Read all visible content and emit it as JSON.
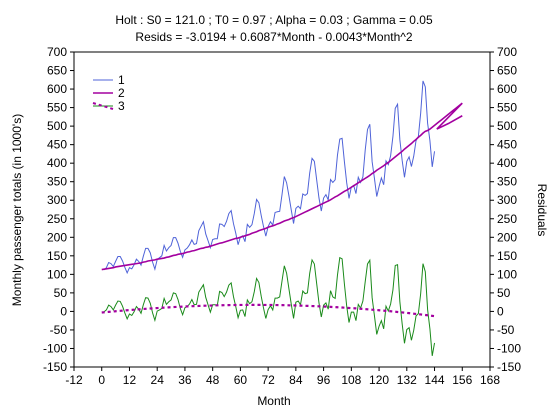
{
  "chart_data": {
    "type": "line",
    "title": "Holt : S0 = 121.0 ; T0 = 0.97 ; Alpha = 0.03 ; Gamma = 0.05",
    "subtitle": "Resids = -3.0194 + 0.6087*Month - 0.0043*Month^2",
    "xlabel": "Month",
    "ylabel": "Monthly passenger totals (in 1000's)",
    "ylabel_right": "Residuals",
    "xlim": [
      -12,
      168
    ],
    "ylim": [
      -150,
      700
    ],
    "ylim_right": [
      -150,
      700
    ],
    "xticks": [
      "-12",
      "0",
      "12",
      "24",
      "36",
      "48",
      "60",
      "72",
      "84",
      "96",
      "108",
      "120",
      "132",
      "144",
      "156",
      "168"
    ],
    "yticks": [
      "-150",
      "-100",
      "-50",
      "0",
      "50",
      "100",
      "150",
      "200",
      "250",
      "300",
      "350",
      "400",
      "450",
      "500",
      "550",
      "600",
      "650",
      "700"
    ],
    "grid": false,
    "legend_position": "top-left",
    "series": [
      {
        "name": "1",
        "color": "#4f63d8",
        "style": "solid",
        "x_start": 1,
        "values": [
          112,
          118,
          132,
          129,
          121,
          135,
          148,
          148,
          136,
          119,
          104,
          118,
          115,
          126,
          141,
          135,
          125,
          149,
          170,
          170,
          158,
          133,
          114,
          140,
          145,
          150,
          178,
          163,
          172,
          178,
          199,
          199,
          184,
          162,
          146,
          166,
          171,
          180,
          193,
          181,
          183,
          218,
          230,
          242,
          209,
          191,
          172,
          194,
          196,
          196,
          236,
          235,
          229,
          243,
          264,
          272,
          237,
          211,
          180,
          201,
          204,
          188,
          235,
          227,
          234,
          264,
          302,
          293,
          259,
          229,
          203,
          229,
          242,
          233,
          267,
          269,
          270,
          315,
          364,
          347,
          312,
          274,
          237,
          278,
          284,
          277,
          317,
          313,
          318,
          374,
          413,
          405,
          355,
          306,
          271,
          306,
          315,
          301,
          356,
          348,
          355,
          422,
          465,
          467,
          404,
          347,
          305,
          336,
          340,
          318,
          362,
          348,
          363,
          435,
          491,
          505,
          404,
          359,
          310,
          337,
          360,
          342,
          406,
          396,
          420,
          472,
          548,
          559,
          463,
          407,
          362,
          405,
          417,
          391,
          419,
          461,
          472,
          535,
          622,
          606,
          508,
          461,
          390,
          432
        ]
      },
      {
        "name": "2",
        "color": "#a3009f",
        "style": "solid",
        "x_start": 0,
        "values": [
          113,
          114,
          115,
          116,
          117,
          118,
          120,
          121,
          122,
          123,
          124,
          125,
          126,
          127,
          128,
          129,
          130,
          131,
          133,
          134,
          136,
          137,
          138,
          139,
          141,
          142,
          143,
          144,
          146,
          147,
          149,
          151,
          152,
          154,
          155,
          156,
          158,
          160,
          161,
          163,
          164,
          166,
          168,
          170,
          171,
          173,
          174,
          176,
          178,
          180,
          182,
          184,
          185,
          187,
          189,
          191,
          193,
          195,
          197,
          198,
          200,
          202,
          204,
          206,
          208,
          211,
          213,
          215,
          218,
          220,
          222,
          224,
          227,
          229,
          231,
          233,
          236,
          238,
          241,
          244,
          246,
          248,
          251,
          253,
          256,
          259,
          262,
          265,
          268,
          271,
          274,
          277,
          280,
          283,
          286,
          289,
          292,
          295,
          298,
          301,
          305,
          309,
          312,
          316,
          320,
          324,
          327,
          331,
          335,
          339,
          343,
          347,
          351,
          355,
          359,
          363,
          367,
          372,
          376,
          381,
          385,
          389,
          393,
          398,
          402,
          407,
          412,
          417,
          422,
          427,
          432,
          438,
          443,
          448,
          453,
          459,
          464,
          470,
          475,
          481,
          486,
          488,
          492,
          497,
          502,
          507,
          512,
          517,
          522,
          527,
          532,
          537,
          542,
          547,
          552,
          557,
          562
        ],
        "extended_points": [
          [
            145,
            492
          ],
          [
            150,
            507
          ],
          [
            156,
            528
          ]
        ]
      },
      {
        "name": "3",
        "color": "#1a8a1a",
        "style": "solid",
        "x_start": 1,
        "values": [
          -1,
          4,
          17,
          13,
          4,
          17,
          28,
          27,
          14,
          -4,
          -20,
          -7,
          -11,
          -1,
          13,
          6,
          -5,
          18,
          37,
          36,
          22,
          -4,
          -24,
          1,
          4,
          8,
          35,
          19,
          26,
          31,
          50,
          48,
          32,
          8,
          -9,
          10,
          13,
          20,
          32,
          18,
          19,
          52,
          62,
          72,
          38,
          18,
          -2,
          18,
          18,
          16,
          54,
          51,
          40,
          52,
          71,
          77,
          40,
          13,
          -17,
          3,
          4,
          -14,
          31,
          21,
          26,
          53,
          89,
          78,
          41,
          9,
          -19,
          5,
          15,
          4,
          36,
          36,
          39,
          82,
          123,
          103,
          61,
          20,
          -19,
          25,
          28,
          18,
          55,
          48,
          50,
          103,
          139,
          128,
          75,
          23,
          -15,
          17,
          23,
          6,
          56,
          39,
          35,
          98,
          145,
          142,
          74,
          14,
          -30,
          -2,
          -2,
          -25,
          19,
          9,
          28,
          80,
          128,
          138,
          37,
          -12,
          -62,
          -40,
          -25,
          -47,
          14,
          1,
          20,
          58,
          124,
          126,
          26,
          -34,
          -86,
          -49,
          -44,
          -78,
          -51,
          -12,
          -6,
          48,
          129,
          107,
          5,
          -47,
          -120,
          -85
        ]
      },
      {
        "name": "",
        "color": "#a3009f",
        "style": "dashed-fit",
        "x_start": 0,
        "values": [
          -3.0,
          -2.4,
          -1.8,
          -1.2,
          -0.7,
          -0.1,
          0.5,
          1.0,
          1.6,
          2.1,
          2.6,
          3.1,
          3.7,
          4.2,
          4.7,
          5.2,
          5.6,
          6.1,
          6.6,
          7.0,
          7.4,
          7.9,
          8.3,
          8.7,
          9.1,
          9.5,
          9.9,
          10.3,
          10.6,
          11.0,
          11.3,
          11.7,
          12.0,
          12.3,
          12.6,
          12.9,
          13.2,
          13.5,
          13.8,
          14.1,
          14.3,
          14.6,
          14.8,
          15.0,
          15.2,
          15.4,
          15.6,
          15.8,
          16.0,
          16.2,
          16.4,
          16.5,
          16.6,
          16.8,
          16.9,
          17.0,
          17.1,
          17.2,
          17.3,
          17.4,
          17.4,
          17.5,
          17.5,
          17.6,
          17.6,
          17.6,
          17.6,
          17.6,
          17.6,
          17.6,
          17.5,
          17.5,
          17.4,
          17.4,
          17.3,
          17.2,
          17.1,
          17.0,
          16.9,
          16.8,
          16.6,
          16.5,
          16.3,
          16.2,
          16.0,
          15.8,
          15.6,
          15.4,
          15.2,
          15.0,
          14.8,
          14.5,
          14.3,
          14.0,
          13.7,
          13.5,
          13.2,
          12.9,
          12.6,
          12.2,
          11.9,
          11.6,
          11.2,
          10.9,
          10.5,
          10.1,
          9.7,
          9.3,
          8.9,
          8.5,
          8.1,
          7.6,
          7.2,
          6.7,
          6.2,
          5.7,
          5.3,
          4.7,
          4.2,
          3.7,
          3.2,
          2.6,
          2.1,
          1.5,
          0.9,
          0.4,
          -0.2,
          -0.8,
          -1.5,
          -2.1,
          -2.7,
          -3.4,
          -4.0,
          -4.7,
          -5.4,
          -6.1,
          -6.8,
          -7.5,
          -8.2,
          -8.9,
          -9.7,
          -10.4,
          -11.2,
          -12.0,
          -12.7
        ]
      }
    ]
  }
}
